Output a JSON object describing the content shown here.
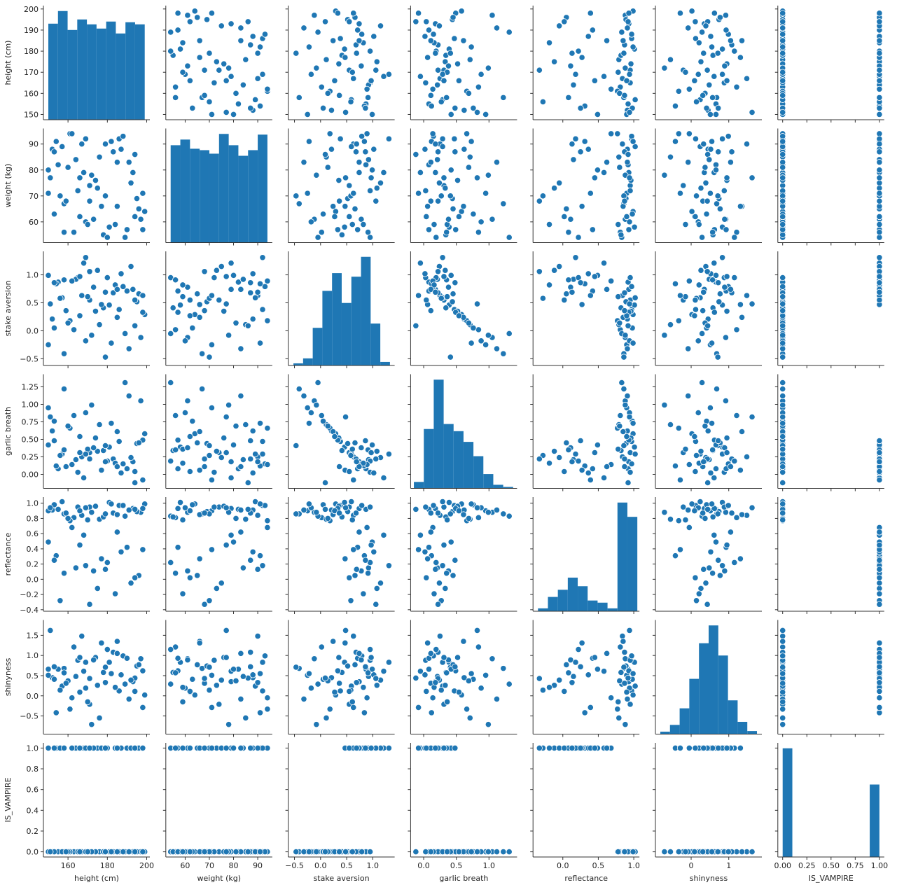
{
  "chart_data": {
    "type": "pairplot",
    "color": "#1f77b4",
    "variables": [
      {
        "name": "height (cm)",
        "lim": [
          147.5,
          201.6
        ],
        "xticks": [
          160,
          180,
          200
        ],
        "yticks": [
          150,
          160,
          170,
          180,
          190,
          200
        ],
        "hist": {
          "bins": [
            150,
            154.9,
            159.8,
            164.7,
            169.6,
            174.5,
            179.4,
            184.3,
            189.2,
            194.1,
            199
          ],
          "counts": [
            137,
            155,
            128,
            143,
            136,
            130,
            140,
            123,
            139,
            136
          ]
        },
        "values": [
          152,
          197,
          171,
          163,
          186,
          158,
          193,
          176,
          181,
          150,
          167,
          199,
          155,
          189,
          174,
          161,
          195,
          169,
          183,
          153,
          178,
          191,
          165,
          185,
          157,
          172,
          198,
          160,
          188,
          166,
          179,
          151,
          194,
          170,
          182,
          159,
          164,
          190,
          175,
          154,
          196,
          168,
          180,
          156,
          187,
          173,
          162,
          192,
          177,
          150,
          184,
          169,
          198,
          158,
          185,
          171,
          153,
          194,
          166,
          179
        ]
      },
      {
        "name": "weight (kg)",
        "lim": [
          52,
          96
        ],
        "xticks": [
          60,
          70,
          80,
          90
        ],
        "yticks": [
          60,
          70,
          80,
          90
        ],
        "hist": {
          "bins": [
            54,
            58,
            62,
            66,
            70,
            74,
            78,
            82,
            86,
            90,
            94
          ],
          "counts": [
            138,
            146,
            133,
            131,
            126,
            154,
            138,
            123,
            131,
            153
          ]
        },
        "values": [
          88,
          61,
          74,
          56,
          92,
          67,
          79,
          85,
          58,
          71,
          90,
          64,
          82,
          54,
          76,
          94,
          69,
          60,
          87,
          63,
          55,
          83,
          72,
          66,
          89,
          78,
          57,
          81,
          93,
          62,
          70,
          77,
          86,
          59,
          91,
          68,
          84,
          57,
          73,
          91,
          65,
          79,
          54,
          70,
          88,
          61,
          94,
          75,
          66,
          80,
          59,
          92,
          71,
          56,
          83,
          68,
          87,
          62,
          77,
          90
        ]
      },
      {
        "name": "stake aversion",
        "lim": [
          -0.62,
          1.42
        ],
        "xticks": [
          {
            "value": -0.5,
            "label": "−0.5"
          },
          {
            "value": 0,
            "label": "0.0"
          },
          0.5,
          {
            "value": 1,
            "label": "1.0"
          }
        ],
        "yticks": [
          {
            "value": -0.5,
            "label": "−0.5"
          },
          {
            "value": 0,
            "label": "0.0"
          },
          0.5,
          {
            "value": 1,
            "label": "1.0"
          }
        ],
        "hist": {
          "bins": [
            -0.52,
            -0.335,
            -0.15,
            0.035,
            0.22,
            0.405,
            0.59,
            0.775,
            0.96,
            1.145,
            1.33
          ],
          "counts": [
            3,
            10,
            53,
            105,
            130,
            88,
            125,
            153,
            59,
            5
          ]
        },
        "values": [
          0.21,
          -0.12,
          0.55,
          0.02,
          0.38,
          -0.41,
          0.74,
          0.11,
          0.46,
          -0.25,
          0.63,
          0.29,
          0.87,
          -0.05,
          0.35,
          0.18,
          0.52,
          -0.18,
          0.68,
          0.05,
          0.41,
          -0.32,
          0.95,
          0.24,
          0.59,
          -0.08,
          0.33,
          0.14,
          0.79,
          0.27,
          -0.47,
          0.48,
          0.09,
          0.61,
          -0.22,
          0.36,
          0.92,
          0.71,
          1.08,
          0.84,
          0.66,
          1.21,
          0.95,
          0.58,
          1.02,
          0.78,
          0.89,
          1.15,
          0.47,
          0.99,
          0.82,
          1.31,
          0.63,
          0.91,
          0.74,
          1.06,
          0.86,
          0.55,
          0.97,
          0.69
        ]
      },
      {
        "name": "garlic breath",
        "lim": [
          -0.2,
          1.43
        ],
        "xticks": [
          {
            "value": 0,
            "label": "0.0"
          },
          0.5,
          {
            "value": 1,
            "label": "1.0"
          }
        ],
        "yticks": [
          {
            "value": 0,
            "label": "0.00"
          },
          0.25,
          {
            "value": 0.5,
            "label": "0.50"
          },
          0.75,
          {
            "value": 1,
            "label": "1.00"
          },
          1.25
        ],
        "hist": {
          "bins": [
            -0.15,
            0.002,
            0.154,
            0.306,
            0.458,
            0.61,
            0.762,
            0.914,
            1.066,
            1.218,
            1.37
          ],
          "counts": [
            9,
            83,
            152,
            90,
            80,
            65,
            45,
            20,
            5,
            2
          ]
        },
        "values": [
          0.62,
          1.05,
          0.31,
          0.84,
          0.47,
          1.22,
          0.18,
          0.71,
          0.39,
          0.95,
          0.25,
          0.58,
          0.08,
          1.31,
          0.52,
          0.66,
          0.44,
          0.88,
          0.22,
          0.76,
          0.34,
          1.12,
          0.03,
          0.61,
          0.29,
          0.99,
          0.49,
          0.69,
          0.15,
          0.54,
          0.41,
          0.82,
          -0.12,
          0.36,
          0.73,
          0.11,
          0.21,
          0.08,
          0.33,
          0.12,
          0.45,
          -0.05,
          0.19,
          0.27,
          0.02,
          0.38,
          0.14,
          0.24,
          0.06,
          0.42,
          0.16,
          0.29,
          -0.08,
          0.35,
          0.11,
          0.22,
          0.48,
          0.04,
          0.31,
          0.18
        ]
      },
      {
        "name": "reflectance",
        "lim": [
          -0.42,
          1.08
        ],
        "xticks": [
          {
            "value": 0,
            "label": "0.0"
          },
          0.5,
          {
            "value": 1,
            "label": "1.0"
          }
        ],
        "yticks": [
          {
            "value": -0.4,
            "label": "−0.4"
          },
          {
            "value": -0.2,
            "label": "−0.2"
          },
          {
            "value": 0,
            "label": "0.0"
          },
          0.2,
          0.4,
          0.6,
          0.8,
          {
            "value": 1,
            "label": "1.0"
          }
        ],
        "hist": {
          "bins": [
            -0.35,
            -0.21,
            -0.07,
            0.07,
            0.21,
            0.35,
            0.49,
            0.63,
            0.77,
            0.91,
            1.05
          ],
          "counts": [
            4,
            20,
            30,
            47,
            35,
            15,
            12,
            4,
            152,
            132
          ]
        },
        "values": [
          0.91,
          0.88,
          0.95,
          0.81,
          0.97,
          0.86,
          0.93,
          0.79,
          1.01,
          0.9,
          0.84,
          0.99,
          0.92,
          0.83,
          0.96,
          0.77,
          0.89,
          0.94,
          0.87,
          0.98,
          0.82,
          0.91,
          0.95,
          0.85,
          1.02,
          0.88,
          0.93,
          0.8,
          0.97,
          0.9,
          0.86,
          0.94,
          0.92,
          0.78,
          0.99,
          0.87,
          0.15,
          0.42,
          -0.12,
          0.31,
          0.05,
          0.58,
          0.22,
          -0.28,
          0.36,
          0.11,
          0.68,
          -0.05,
          0.27,
          0.49,
          -0.19,
          0.18,
          0.39,
          0.08,
          0.62,
          -0.33,
          0.25,
          0.02,
          0.45,
          0.13
        ]
      },
      {
        "name": "shinyness",
        "lim": [
          -0.95,
          1.88
        ],
        "xticks": [
          0,
          1
        ],
        "yticks": [
          {
            "value": -0.5,
            "label": "−0.5"
          },
          {
            "value": 0,
            "label": "0.0"
          },
          0.5,
          {
            "value": 1,
            "label": "1.0"
          },
          1.5
        ],
        "hist": {
          "bins": [
            -0.82,
            -0.563,
            -0.306,
            -0.049,
            0.208,
            0.465,
            0.722,
            0.979,
            1.236,
            1.493,
            1.75
          ],
          "counts": [
            4,
            15,
            42,
            90,
            148,
            177,
            128,
            55,
            20,
            5
          ]
        },
        "values": [
          0.45,
          0.92,
          -0.21,
          1.21,
          0.12,
          0.68,
          0.35,
          -0.55,
          0.83,
          0.51,
          1.48,
          0.02,
          0.66,
          0.29,
          0.95,
          -0.33,
          0.74,
          0.19,
          1.08,
          0.41,
          0.58,
          -0.08,
          0.88,
          1.35,
          0.24,
          -0.71,
          0.62,
          0.37,
          0.99,
          0.09,
          0.71,
          1.62,
          0.44,
          -0.15,
          0.55,
          0.31,
          0.48,
          0.93,
          0.26,
          -0.42,
          0.77,
          0.61,
          1.15,
          0.14,
          0.52,
          0.89,
          -0.05,
          0.39,
          1.31,
          0.66,
          0.21,
          0.83,
          -0.29,
          0.57,
          1.05,
          0.43,
          0.72,
          0.11,
          0.95,
          0.33
        ]
      },
      {
        "name": "IS_VAMPIRE",
        "lim": [
          -0.05,
          1.05
        ],
        "xticks": [
          {
            "value": 0,
            "label": "0.00"
          },
          0.25,
          {
            "value": 0.5,
            "label": "0.50"
          },
          0.75,
          {
            "value": 1,
            "label": "1.00"
          }
        ],
        "yticks": [
          {
            "value": 0,
            "label": "0.0"
          },
          0.2,
          0.4,
          0.6,
          0.8,
          {
            "value": 1,
            "label": "1.0"
          }
        ],
        "hist": {
          "bins": [
            0,
            0.1,
            0.2,
            0.3,
            0.4,
            0.5,
            0.6,
            0.7,
            0.8,
            0.9,
            1
          ],
          "counts": [
            147,
            0,
            0,
            0,
            0,
            0,
            0,
            0,
            0,
            98
          ]
        },
        "values": [
          0,
          0,
          0,
          0,
          0,
          0,
          0,
          0,
          0,
          0,
          0,
          0,
          0,
          0,
          0,
          0,
          0,
          0,
          0,
          0,
          0,
          0,
          0,
          0,
          0,
          0,
          0,
          0,
          0,
          0,
          0,
          0,
          0,
          0,
          0,
          0,
          1,
          1,
          1,
          1,
          1,
          1,
          1,
          1,
          1,
          1,
          1,
          1,
          1,
          1,
          1,
          1,
          1,
          1,
          1,
          1,
          1,
          1,
          1,
          1
        ]
      }
    ]
  }
}
